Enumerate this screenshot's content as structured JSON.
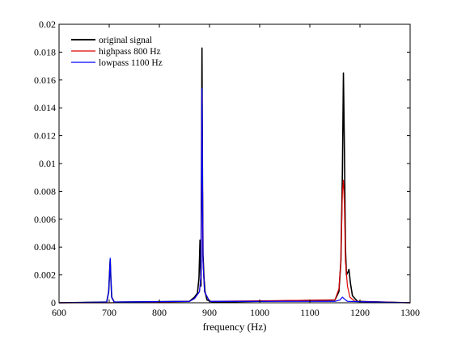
{
  "chart_data": {
    "type": "line",
    "title": "",
    "xlabel": "frequency (Hz)",
    "ylabel": "",
    "xlim": [
      600,
      1300
    ],
    "ylim": [
      0,
      0.02
    ],
    "xticks": [
      "600",
      "700",
      "800",
      "900",
      "1000",
      "1100",
      "1200",
      "1300"
    ],
    "yticks": [
      "0",
      "0.002",
      "0.004",
      "0.006",
      "0.008",
      "0.01",
      "0.012",
      "0.014",
      "0.016",
      "0.018",
      "0.02"
    ],
    "grid": false,
    "legend_position": "top-left",
    "series": [
      {
        "name": "original signal",
        "color": "#000000",
        "points": [
          [
            600,
            0
          ],
          [
            695,
            5e-05
          ],
          [
            699,
            0.0008
          ],
          [
            701,
            0.0024
          ],
          [
            702,
            0.0031
          ],
          [
            703,
            0.002
          ],
          [
            705,
            0.0004
          ],
          [
            710,
            5e-05
          ],
          [
            860,
            0.0001
          ],
          [
            870,
            0.0004
          ],
          [
            876,
            0.0007
          ],
          [
            879,
            0.0018
          ],
          [
            881,
            0.0045
          ],
          [
            883,
            0.0012
          ],
          [
            885,
            0.0183
          ],
          [
            886,
            0.009
          ],
          [
            887,
            0.0035
          ],
          [
            889,
            0.0018
          ],
          [
            891,
            0.0008
          ],
          [
            895,
            0.0002
          ],
          [
            905,
            5e-05
          ],
          [
            1150,
            0.0002
          ],
          [
            1158,
            0.0008
          ],
          [
            1162,
            0.003
          ],
          [
            1165,
            0.0094
          ],
          [
            1167,
            0.0165
          ],
          [
            1169,
            0.011
          ],
          [
            1171,
            0.004
          ],
          [
            1173,
            0.002
          ],
          [
            1176,
            0.0022
          ],
          [
            1178,
            0.0024
          ],
          [
            1181,
            0.0014
          ],
          [
            1185,
            0.0005
          ],
          [
            1195,
            0.0001
          ],
          [
            1300,
            0
          ]
        ]
      },
      {
        "name": "highpass 800 Hz",
        "color": "#e00000",
        "points": [
          [
            600,
            0
          ],
          [
            700,
            0
          ],
          [
            860,
            0.0001
          ],
          [
            870,
            0.0003
          ],
          [
            880,
            0.0008
          ],
          [
            883,
            0.002
          ],
          [
            885,
            0.015
          ],
          [
            887,
            0.003
          ],
          [
            890,
            0.0008
          ],
          [
            900,
            0.0001
          ],
          [
            1150,
            0.0002
          ],
          [
            1158,
            0.001
          ],
          [
            1162,
            0.003
          ],
          [
            1165,
            0.008
          ],
          [
            1167,
            0.0088
          ],
          [
            1169,
            0.007
          ],
          [
            1171,
            0.003
          ],
          [
            1175,
            0.0012
          ],
          [
            1180,
            0.0004
          ],
          [
            1190,
            0.0001
          ],
          [
            1300,
            0
          ]
        ]
      },
      {
        "name": "lowpass 1100 Hz",
        "color": "#0000ff",
        "points": [
          [
            600,
            0
          ],
          [
            695,
            5e-05
          ],
          [
            699,
            0.0008
          ],
          [
            701,
            0.0024
          ],
          [
            702,
            0.0032
          ],
          [
            703,
            0.002
          ],
          [
            705,
            0.0004
          ],
          [
            710,
            5e-05
          ],
          [
            860,
            0.0001
          ],
          [
            870,
            0.0003
          ],
          [
            880,
            0.0008
          ],
          [
            883,
            0.002
          ],
          [
            885,
            0.0154
          ],
          [
            887,
            0.003
          ],
          [
            890,
            0.0008
          ],
          [
            900,
            0.0001
          ],
          [
            1150,
            0.0001
          ],
          [
            1160,
            0.0002
          ],
          [
            1165,
            0.0004
          ],
          [
            1168,
            0.0003
          ],
          [
            1175,
            0.0001
          ],
          [
            1300,
            0
          ]
        ]
      }
    ]
  }
}
